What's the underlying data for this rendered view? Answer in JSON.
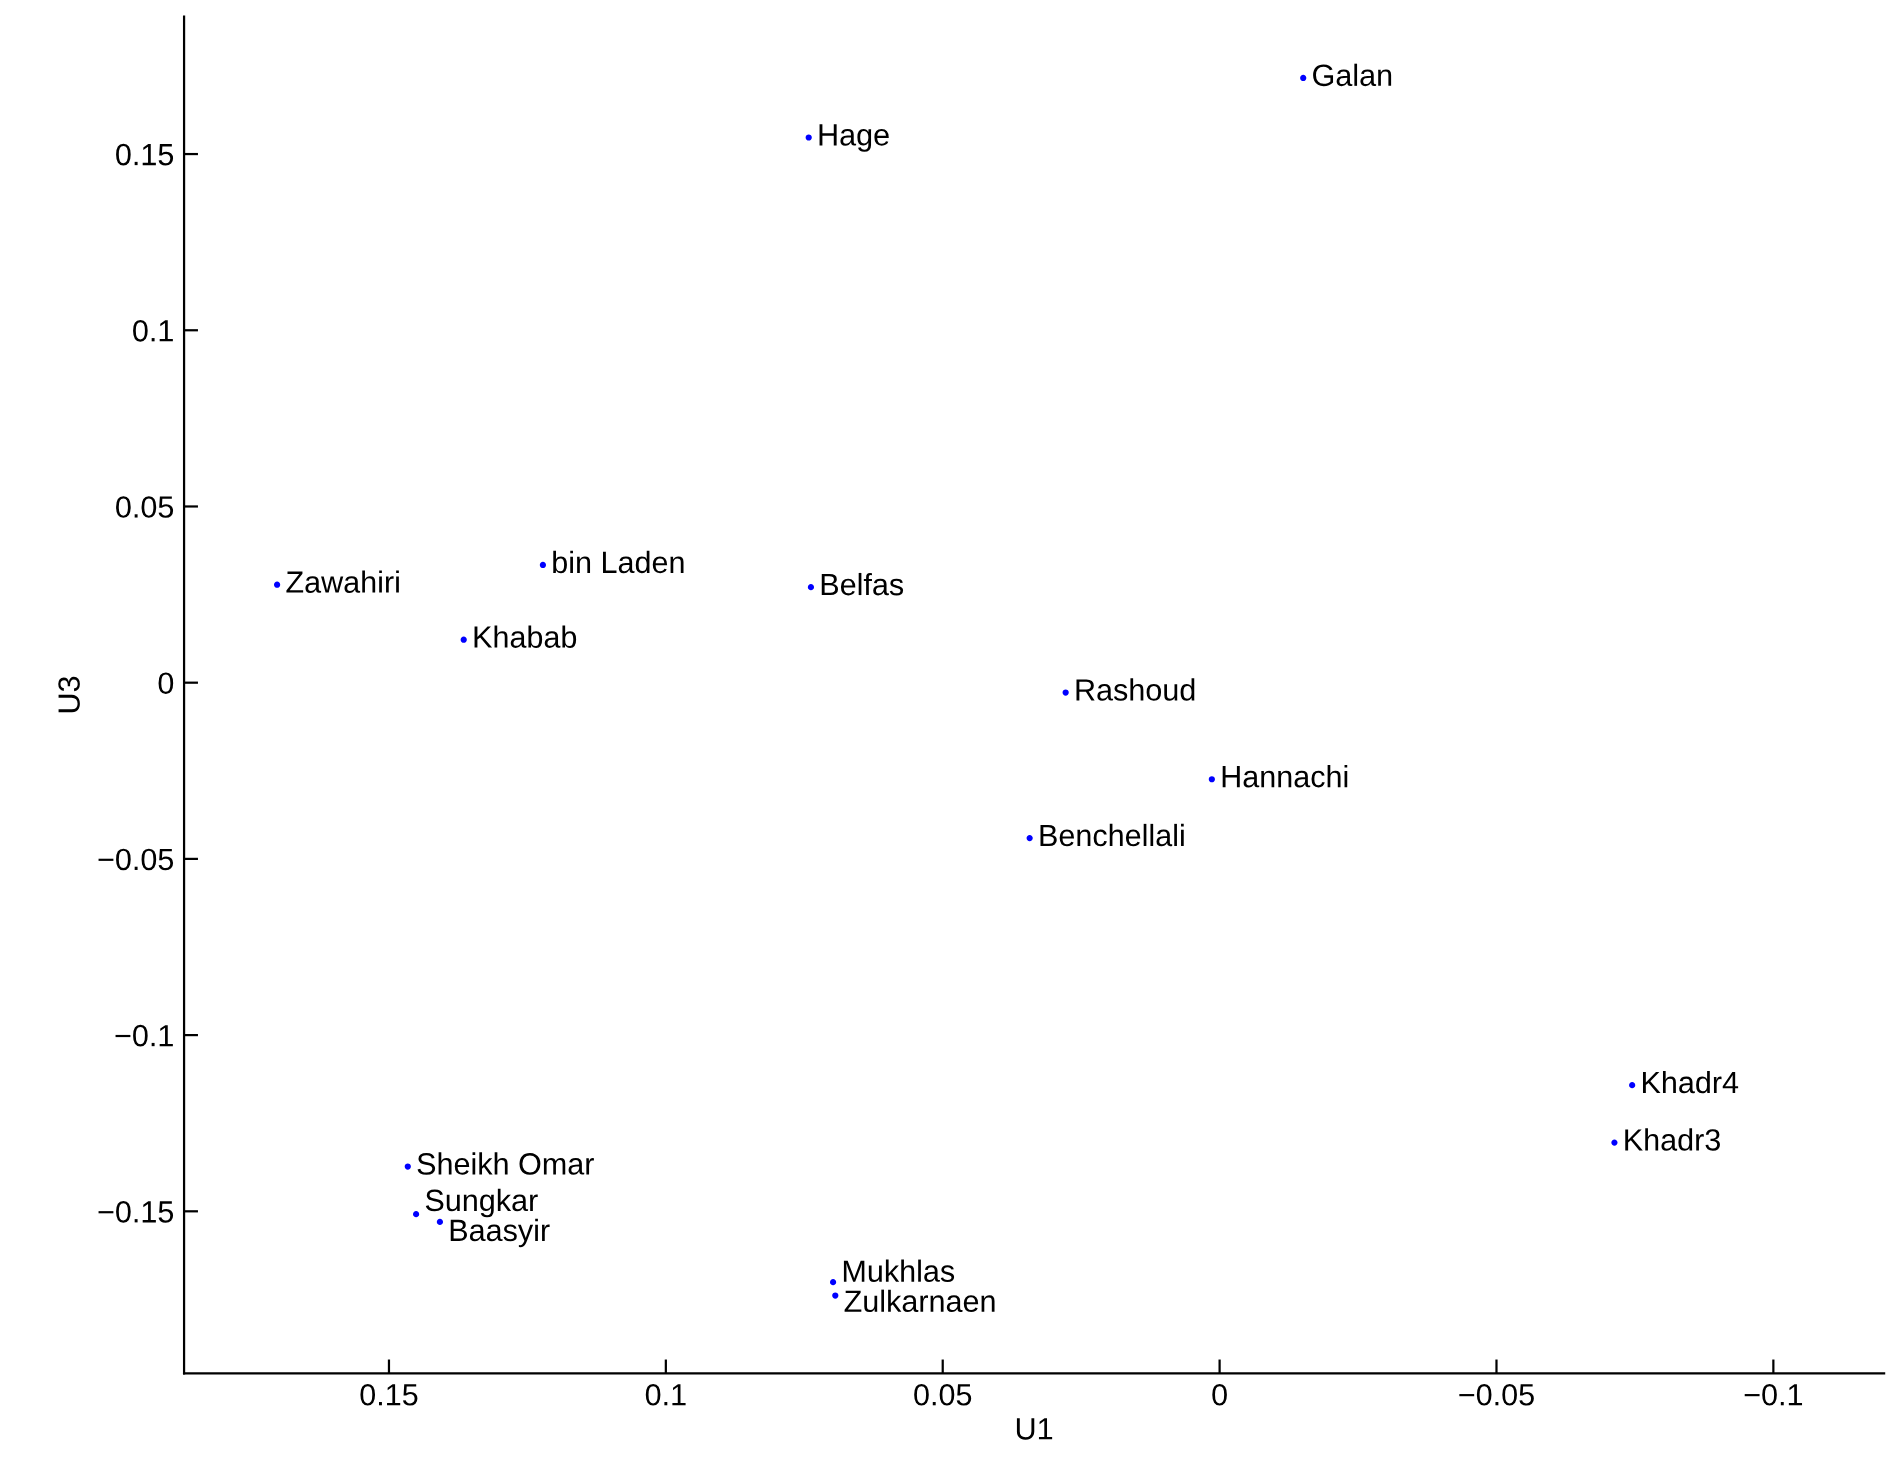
{
  "chart_data": {
    "type": "scatter",
    "xlabel": "U1",
    "ylabel": "U3",
    "x": [
      -0.0151,
      0.0742,
      0.1702,
      0.1222,
      0.0738,
      0.1365,
      0.0278,
      0.0014,
      0.0343,
      -0.0745,
      -0.0713,
      0.1466,
      0.1451,
      0.1408,
      0.0698,
      0.0694
    ],
    "series": [
      {
        "color": "#0000ff",
        "values": [
          0.1716,
          0.1547,
          0.0278,
          0.0334,
          0.0271,
          0.0122,
          -0.0028,
          -0.0274,
          -0.0441,
          -0.1142,
          -0.1305,
          -0.1373,
          -0.1508,
          -0.153,
          -0.1701,
          -0.1739
        ]
      }
    ],
    "annotations": [
      {
        "text": "Galan",
        "x": -0.0151,
        "y": 0.1716
      },
      {
        "text": "Hage",
        "x": 0.0742,
        "y": 0.1547
      },
      {
        "text": "Zawahiri",
        "x": 0.1702,
        "y": 0.0278
      },
      {
        "text": "bin Laden",
        "x": 0.1222,
        "y": 0.0334
      },
      {
        "text": "Belfas",
        "x": 0.0738,
        "y": 0.0271
      },
      {
        "text": "Khabab",
        "x": 0.1365,
        "y": 0.0122
      },
      {
        "text": "Rashoud",
        "x": 0.0278,
        "y": -0.0028
      },
      {
        "text": "Hannachi",
        "x": 0.0014,
        "y": -0.0274
      },
      {
        "text": "Benchellali",
        "x": 0.0343,
        "y": -0.0441
      },
      {
        "text": "Khadr4",
        "x": -0.0745,
        "y": -0.1142
      },
      {
        "text": "Khadr3",
        "x": -0.0713,
        "y": -0.1305
      },
      {
        "text": "Sheikh Omar",
        "x": 0.1466,
        "y": -0.1373
      },
      {
        "text": "Sungkar",
        "x": 0.1451,
        "y": -0.1508
      },
      {
        "text": "Baasyir",
        "x": 0.1408,
        "y": -0.153
      },
      {
        "text": "Mukhlas",
        "x": 0.0698,
        "y": -0.1701
      },
      {
        "text": "Zulkarnaen",
        "x": 0.0694,
        "y": -0.1739
      }
    ],
    "xlim": [
      0.187,
      -0.12
    ],
    "ylim": [
      -0.196,
      0.189
    ],
    "xticks": [
      0.15,
      0.1,
      0.05,
      0,
      {
        "value": -0.05,
        "label": "−0.05"
      },
      {
        "value": -0.1,
        "label": "−0.1"
      }
    ],
    "yticks": [
      {
        "value": -0.15,
        "label": "−0.15"
      },
      {
        "value": -0.1,
        "label": "−0.1"
      },
      {
        "value": -0.05,
        "label": "−0.05"
      },
      0,
      0.05,
      0.1,
      0.15
    ],
    "grid": false,
    "legend": false,
    "marker": "circle"
  }
}
